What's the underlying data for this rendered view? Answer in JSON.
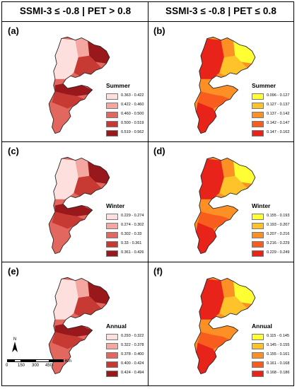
{
  "columns": [
    {
      "title": "SSMI-3 ≤ -0.8 | PET > 0.8"
    },
    {
      "title": "SSMI-3 ≤ -0.8 | PET ≤ 0.8"
    }
  ],
  "panels": [
    {
      "id": "a",
      "label": "(a)",
      "season": "Summer",
      "palette": "red",
      "legend": [
        "0.363 - 0.422",
        "0.422 - 0.460",
        "0.460 - 0.500",
        "0.500 - 0.519",
        "0.519 - 0.562"
      ]
    },
    {
      "id": "b",
      "label": "(b)",
      "season": "Summer",
      "palette": "yellow",
      "legend": [
        "0.096 - 0.127",
        "0.127 - 0.137",
        "0.137 - 0.142",
        "0.142 - 0.147",
        "0.147 - 0.162"
      ]
    },
    {
      "id": "c",
      "label": "(c)",
      "season": "Winter",
      "palette": "red",
      "legend": [
        "0.229 - 0.274",
        "0.274 - 0.302",
        "0.302 - 0.33",
        "0.33 - 0.361",
        "0.361 - 0.426"
      ]
    },
    {
      "id": "d",
      "label": "(d)",
      "season": "Winter",
      "palette": "yellow",
      "legend": [
        "0.155 - 0.193",
        "0.193 - 0.207",
        "0.207 - 0.216",
        "0.216 - 0.229",
        "0.229 - 0.249"
      ]
    },
    {
      "id": "e",
      "label": "(e)",
      "season": "Annual",
      "palette": "red",
      "legend": [
        "0.293 - 0.322",
        "0.322 - 0.378",
        "0.378 - 0.400",
        "0.400 - 0.424",
        "0.424 - 0.494"
      ]
    },
    {
      "id": "f",
      "label": "(f)",
      "season": "Annual",
      "palette": "yellow",
      "legend": [
        "0.115 - 0.145",
        "0.145 - 0.155",
        "0.155 - 0.161",
        "0.161 - 0.168",
        "0.168 - 0.186"
      ]
    }
  ],
  "palettes": {
    "red": [
      "#fde0dd",
      "#f4a6a1",
      "#e2685f",
      "#c73a34",
      "#99181b"
    ],
    "yellow": [
      "#ffff33",
      "#fec32b",
      "#fd9025",
      "#f85d1e",
      "#e8231a"
    ]
  },
  "scalebar": {
    "ticks": [
      "0",
      "150",
      "300",
      "450"
    ],
    "unit": "Km",
    "north": "N"
  }
}
